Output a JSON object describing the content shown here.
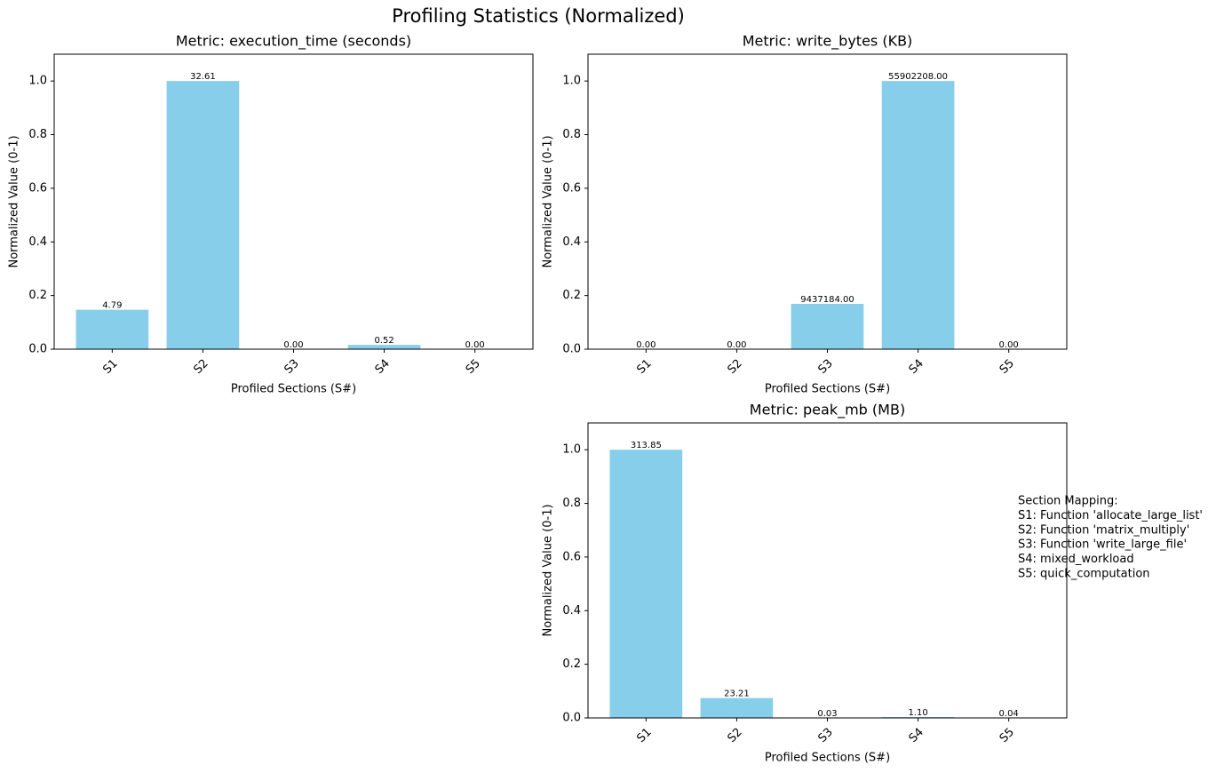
{
  "figure": {
    "title": "Profiling Statistics (Normalized)",
    "annotation": [
      "Section Mapping:",
      "S1: Function 'allocate_large_list'",
      "S2: Function 'matrix_multiply'",
      "S3: Function 'write_large_file'",
      "S4: mixed_workload",
      "S5: quick_computation"
    ]
  },
  "chart_data": [
    {
      "type": "bar",
      "title": "Metric: execution_time (seconds)",
      "x_label": "Profiled Sections (S#)",
      "y_label": "Normalized Value (0-1)",
      "categories": [
        "S1",
        "S2",
        "S3",
        "S4",
        "S5"
      ],
      "values": [
        0.147,
        1,
        0,
        0.016,
        0
      ],
      "raw_labels": [
        "4.79",
        "32.61",
        "0.00",
        "0.52",
        "0.00"
      ],
      "color": "#87ceeb",
      "ylim": [
        0,
        1.1
      ],
      "yticks": [
        {
          "value": 0,
          "label": "0.0"
        },
        {
          "value": 0.2,
          "label": "0.2"
        },
        {
          "value": 0.4,
          "label": "0.4"
        },
        {
          "value": 0.6,
          "label": "0.6"
        },
        {
          "value": 0.8,
          "label": "0.8"
        },
        {
          "value": 1,
          "label": "1.0"
        }
      ],
      "grid": false
    },
    {
      "type": "bar",
      "title": "Metric: write_bytes (KB)",
      "x_label": "Profiled Sections (S#)",
      "y_label": "Normalized Value (0-1)",
      "categories": [
        "S1",
        "S2",
        "S3",
        "S4",
        "S5"
      ],
      "values": [
        0,
        0,
        0.169,
        1,
        0
      ],
      "raw_labels": [
        "0.00",
        "0.00",
        "9437184.00",
        "55902208.00",
        "0.00"
      ],
      "color": "#87ceeb",
      "ylim": [
        0,
        1.1
      ],
      "yticks": [
        {
          "value": 0,
          "label": "0.0"
        },
        {
          "value": 0.2,
          "label": "0.2"
        },
        {
          "value": 0.4,
          "label": "0.4"
        },
        {
          "value": 0.6,
          "label": "0.6"
        },
        {
          "value": 0.8,
          "label": "0.8"
        },
        {
          "value": 1,
          "label": "1.0"
        }
      ],
      "grid": false
    },
    {
      "type": "bar",
      "title": "Metric: peak_mb (MB)",
      "x_label": "Profiled Sections (S#)",
      "y_label": "Normalized Value (0-1)",
      "categories": [
        "S1",
        "S2",
        "S3",
        "S4",
        "S5"
      ],
      "values": [
        1,
        0.074,
        0,
        0.003,
        0
      ],
      "raw_labels": [
        "313.85",
        "23.21",
        "0.03",
        "1.10",
        "0.04"
      ],
      "color": "#87ceeb",
      "ylim": [
        0,
        1.1
      ],
      "yticks": [
        {
          "value": 0,
          "label": "0.0"
        },
        {
          "value": 0.2,
          "label": "0.2"
        },
        {
          "value": 0.4,
          "label": "0.4"
        },
        {
          "value": 0.6,
          "label": "0.6"
        },
        {
          "value": 0.8,
          "label": "0.8"
        },
        {
          "value": 1,
          "label": "1.0"
        }
      ],
      "grid": false
    }
  ]
}
